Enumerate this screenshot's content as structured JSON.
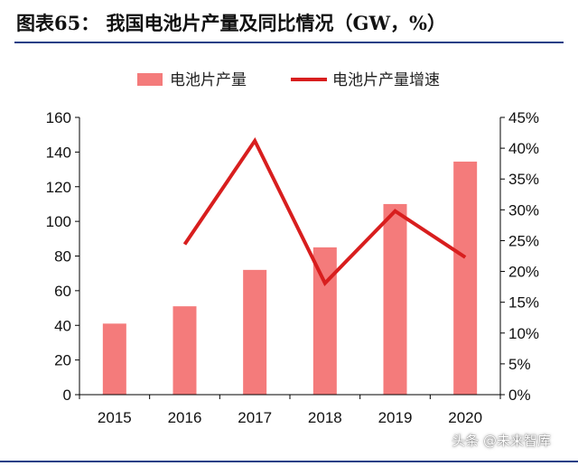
{
  "header": {
    "title": "图表65：  我国电池片产量及同比情况（GW，%）"
  },
  "chart_data": {
    "type": "bar",
    "categories": [
      "2015",
      "2016",
      "2017",
      "2018",
      "2019",
      "2020"
    ],
    "series": [
      {
        "name": "电池片产量",
        "type": "bar",
        "axis": "left",
        "color": "#f47b7b",
        "values": [
          41,
          51,
          72,
          85,
          110,
          134.5
        ]
      },
      {
        "name": "电池片产量增速",
        "type": "line",
        "axis": "right",
        "color": "#d81e1e",
        "values": [
          null,
          24.4,
          41.2,
          18.1,
          29.8,
          22.3
        ]
      }
    ],
    "y_left": {
      "lim": [
        0,
        160
      ],
      "ticks": [
        "0",
        "20",
        "40",
        "60",
        "80",
        "100",
        "120",
        "140",
        "160"
      ]
    },
    "y_right": {
      "lim": [
        0,
        45
      ],
      "ticks": [
        "0%",
        "5%",
        "10%",
        "15%",
        "20%",
        "25%",
        "30%",
        "35%",
        "40%",
        "45%"
      ]
    },
    "legend_position": "top",
    "grid": false
  },
  "watermark": "头条 @未来智库"
}
